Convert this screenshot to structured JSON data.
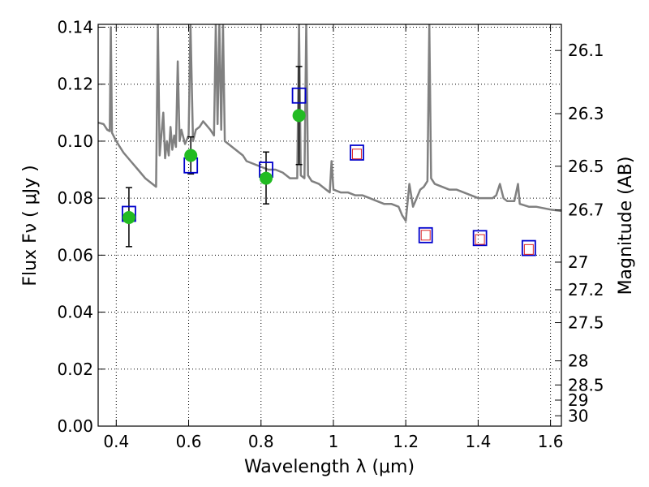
{
  "chart_data": {
    "type": "scatter",
    "title": "",
    "xlabel": "Wavelength  λ (μm)",
    "ylabel": "Flux  Fν  ( μJy )",
    "ylabel2": "Magnitude (AB)",
    "xlim": [
      0.35,
      1.63
    ],
    "ylim": [
      0.0,
      0.141
    ],
    "grid": true,
    "x_ticks": [
      0.4,
      0.6,
      0.8,
      1.0,
      1.2,
      1.4,
      1.6
    ],
    "x_tick_labels": [
      "0.4",
      "0.6",
      "0.8",
      "1",
      "1.2",
      "1.4",
      "1.6"
    ],
    "y_ticks": [
      0.0,
      0.02,
      0.04,
      0.06,
      0.08,
      0.1,
      0.12,
      0.14
    ],
    "y_tick_labels": [
      "0.00",
      "0.02",
      "0.04",
      "0.06",
      "0.08",
      "0.10",
      "0.12",
      "0.14"
    ],
    "right_ticks": [
      {
        "mag": 26.1,
        "label": "26.1"
      },
      {
        "mag": 26.3,
        "label": "26.3"
      },
      {
        "mag": 26.5,
        "label": "26.5"
      },
      {
        "mag": 26.7,
        "label": "26.7"
      },
      {
        "mag": 27.0,
        "label": "27"
      },
      {
        "mag": 27.2,
        "label": "27.2"
      },
      {
        "mag": 27.5,
        "label": "27.5"
      },
      {
        "mag": 28.0,
        "label": "28"
      },
      {
        "mag": 28.5,
        "label": "28.5"
      },
      {
        "mag": 29.0,
        "label": "29"
      },
      {
        "mag": 30.0,
        "label": "30"
      }
    ],
    "colors": {
      "model": "#808080",
      "observed": "#22bb22",
      "model_box": "#0000cc",
      "prediction": "#dd2222",
      "errorbar": "#000000",
      "grid": "#000000"
    },
    "series": [
      {
        "name": "observed",
        "kind": "circle_errorbar",
        "points": [
          {
            "x": 0.435,
            "y": 0.0732,
            "yerr_low": 0.0102,
            "yerr_high": 0.0105
          },
          {
            "x": 0.606,
            "y": 0.095,
            "yerr_low": 0.0065,
            "yerr_high": 0.0065
          },
          {
            "x": 0.814,
            "y": 0.087,
            "yerr_low": 0.009,
            "yerr_high": 0.0092
          },
          {
            "x": 0.905,
            "y": 0.109,
            "yerr_low": 0.0172,
            "yerr_high": 0.0172
          }
        ]
      },
      {
        "name": "model_photometry",
        "kind": "open_square",
        "points": [
          {
            "x": 0.435,
            "y": 0.0745
          },
          {
            "x": 0.606,
            "y": 0.0915
          },
          {
            "x": 0.814,
            "y": 0.09
          },
          {
            "x": 0.905,
            "y": 0.116
          },
          {
            "x": 1.065,
            "y": 0.096
          },
          {
            "x": 1.255,
            "y": 0.067
          },
          {
            "x": 1.405,
            "y": 0.066
          },
          {
            "x": 1.54,
            "y": 0.0625
          }
        ]
      },
      {
        "name": "predicted",
        "kind": "small_square",
        "points": [
          {
            "x": 1.065,
            "y": 0.0955
          },
          {
            "x": 1.255,
            "y": 0.067
          },
          {
            "x": 1.405,
            "y": 0.0655
          },
          {
            "x": 1.54,
            "y": 0.062
          }
        ]
      },
      {
        "name": "sed_model",
        "kind": "line",
        "points": [
          [
            0.35,
            0.1065
          ],
          [
            0.365,
            0.106
          ],
          [
            0.375,
            0.104
          ],
          [
            0.382,
            0.1035
          ],
          [
            0.385,
            0.14
          ],
          [
            0.388,
            0.103
          ],
          [
            0.4,
            0.1
          ],
          [
            0.42,
            0.096
          ],
          [
            0.44,
            0.093
          ],
          [
            0.46,
            0.09
          ],
          [
            0.48,
            0.087
          ],
          [
            0.5,
            0.085
          ],
          [
            0.51,
            0.084
          ],
          [
            0.515,
            0.141
          ],
          [
            0.52,
            0.095
          ],
          [
            0.53,
            0.11
          ],
          [
            0.535,
            0.094
          ],
          [
            0.54,
            0.1
          ],
          [
            0.545,
            0.095
          ],
          [
            0.55,
            0.105
          ],
          [
            0.555,
            0.097
          ],
          [
            0.56,
            0.102
          ],
          [
            0.565,
            0.098
          ],
          [
            0.57,
            0.128
          ],
          [
            0.575,
            0.1
          ],
          [
            0.58,
            0.104
          ],
          [
            0.59,
            0.099
          ],
          [
            0.6,
            0.102
          ],
          [
            0.605,
            0.141
          ],
          [
            0.612,
            0.1
          ],
          [
            0.62,
            0.104
          ],
          [
            0.63,
            0.105
          ],
          [
            0.64,
            0.107
          ],
          [
            0.66,
            0.104
          ],
          [
            0.67,
            0.102
          ],
          [
            0.675,
            0.141
          ],
          [
            0.68,
            0.106
          ],
          [
            0.685,
            0.141
          ],
          [
            0.69,
            0.104
          ],
          [
            0.695,
            0.141
          ],
          [
            0.7,
            0.1
          ],
          [
            0.72,
            0.098
          ],
          [
            0.75,
            0.095
          ],
          [
            0.76,
            0.093
          ],
          [
            0.78,
            0.092
          ],
          [
            0.8,
            0.091
          ],
          [
            0.82,
            0.09
          ],
          [
            0.84,
            0.09
          ],
          [
            0.86,
            0.089
          ],
          [
            0.88,
            0.087
          ],
          [
            0.9,
            0.087
          ],
          [
            0.905,
            0.141
          ],
          [
            0.91,
            0.088
          ],
          [
            0.92,
            0.087
          ],
          [
            0.925,
            0.141
          ],
          [
            0.93,
            0.088
          ],
          [
            0.94,
            0.086
          ],
          [
            0.96,
            0.085
          ],
          [
            0.98,
            0.083
          ],
          [
            0.99,
            0.082
          ],
          [
            0.995,
            0.093
          ],
          [
            1.0,
            0.083
          ],
          [
            1.02,
            0.082
          ],
          [
            1.04,
            0.082
          ],
          [
            1.06,
            0.081
          ],
          [
            1.08,
            0.081
          ],
          [
            1.1,
            0.08
          ],
          [
            1.12,
            0.079
          ],
          [
            1.14,
            0.078
          ],
          [
            1.16,
            0.078
          ],
          [
            1.18,
            0.077
          ],
          [
            1.19,
            0.074
          ],
          [
            1.2,
            0.072
          ],
          [
            1.21,
            0.085
          ],
          [
            1.22,
            0.077
          ],
          [
            1.23,
            0.08
          ],
          [
            1.24,
            0.083
          ],
          [
            1.25,
            0.084
          ],
          [
            1.26,
            0.086
          ],
          [
            1.265,
            0.141
          ],
          [
            1.27,
            0.087
          ],
          [
            1.28,
            0.085
          ],
          [
            1.3,
            0.084
          ],
          [
            1.32,
            0.083
          ],
          [
            1.34,
            0.083
          ],
          [
            1.36,
            0.082
          ],
          [
            1.38,
            0.081
          ],
          [
            1.4,
            0.08
          ],
          [
            1.42,
            0.08
          ],
          [
            1.44,
            0.08
          ],
          [
            1.45,
            0.081
          ],
          [
            1.46,
            0.085
          ],
          [
            1.47,
            0.08
          ],
          [
            1.48,
            0.079
          ],
          [
            1.5,
            0.079
          ],
          [
            1.51,
            0.085
          ],
          [
            1.515,
            0.078
          ],
          [
            1.54,
            0.077
          ],
          [
            1.56,
            0.077
          ],
          [
            1.6,
            0.076
          ],
          [
            1.63,
            0.0755
          ]
        ]
      }
    ]
  }
}
